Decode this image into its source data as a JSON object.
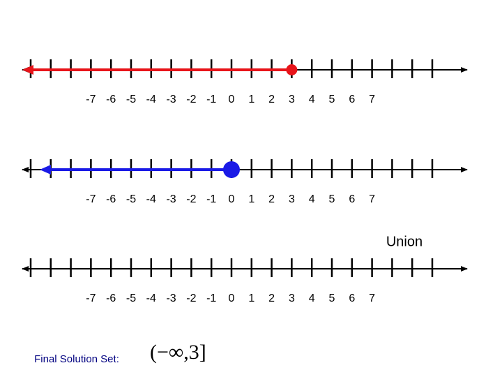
{
  "number_lines": [
    {
      "ticks": [
        -7,
        -6,
        -5,
        -4,
        -3,
        -2,
        -1,
        0,
        1,
        2,
        3,
        4,
        5,
        6,
        7
      ],
      "ray": {
        "endpoint": 3,
        "color": "#e8141a"
      }
    },
    {
      "ticks": [
        -7,
        -6,
        -5,
        -4,
        -3,
        -2,
        -1,
        0,
        1,
        2,
        3,
        4,
        5,
        6,
        7
      ],
      "ray": {
        "endpoint": 0,
        "color": "#1a1ae6"
      }
    },
    {
      "ticks": [
        -7,
        -6,
        -5,
        -4,
        -3,
        -2,
        -1,
        0,
        1,
        2,
        3,
        4,
        5,
        6,
        7
      ]
    }
  ],
  "union_label": "Union",
  "final_label": "Final Solution Set:",
  "solution": "(−∞,3]"
}
